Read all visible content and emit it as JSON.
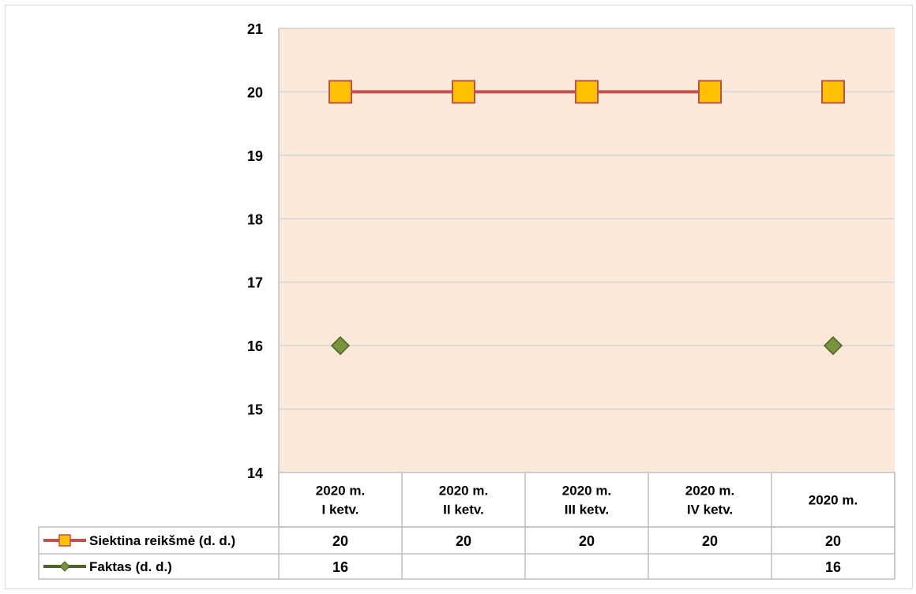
{
  "chart_data": {
    "type": "line",
    "categories": [
      [
        "2020 m.",
        "I ketv."
      ],
      [
        "2020 m.",
        "II ketv."
      ],
      [
        "2020 m.",
        "III ketv."
      ],
      [
        "2020 m.",
        "IV ketv."
      ],
      [
        "2020 m."
      ]
    ],
    "y_ticks": [
      "21",
      "20",
      "19",
      "18",
      "17",
      "16",
      "15",
      "14"
    ],
    "ylim": [
      14,
      21
    ],
    "grid": true,
    "legend": "data-table-left",
    "series": [
      {
        "name": "Siektina reikšmė (d. d.)",
        "values": [
          20,
          20,
          20,
          20,
          20
        ],
        "labels": [
          "20",
          "20",
          "20",
          "20",
          "20"
        ],
        "line_color": "#c0504d",
        "marker": "square",
        "marker_fill": "#ffc000",
        "connected_points": 4
      },
      {
        "name": "Faktas (d. d.)",
        "values": [
          16,
          null,
          null,
          null,
          16
        ],
        "labels": [
          "16",
          "",
          "",
          "",
          "16"
        ],
        "line_color": "#4f6228",
        "marker": "diamond",
        "marker_fill": "#77933c"
      }
    ],
    "plot_background": "#fde9d9",
    "gridline_color": "#d9d9d9"
  }
}
